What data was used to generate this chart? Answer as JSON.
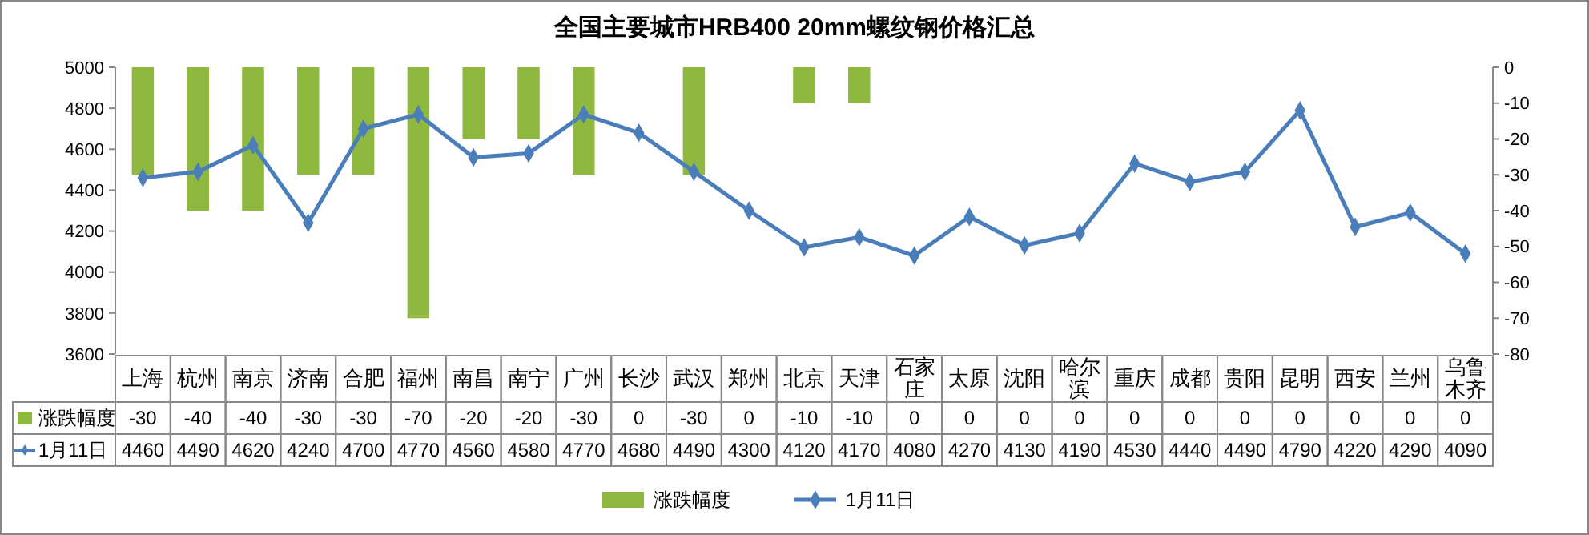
{
  "chart_data": {
    "type": "bar",
    "title": "全国主要城市HRB400 20mm螺纹钢价格汇总",
    "categories": [
      "上海",
      "杭州",
      "南京",
      "济南",
      "合肥",
      "福州",
      "南昌",
      "南宁",
      "广州",
      "长沙",
      "武汉",
      "郑州",
      "北京",
      "天津",
      "石家庄",
      "太原",
      "沈阳",
      "哈尔滨",
      "重庆",
      "成都",
      "贵阳",
      "昆明",
      "西安",
      "兰州",
      "乌鲁木齐"
    ],
    "series": [
      {
        "name": "涨跌幅度",
        "axis": "y2",
        "color": "#8fb83f",
        "values": [
          -30,
          -40,
          -40,
          -30,
          -30,
          -70,
          -20,
          -20,
          -30,
          0,
          -30,
          0,
          -10,
          -10,
          0,
          0,
          0,
          0,
          0,
          0,
          0,
          0,
          0,
          0,
          0
        ]
      },
      {
        "name": "1月11日",
        "type": "line",
        "color": "#4a7ebb",
        "marker": "diamond",
        "values": [
          4460,
          4490,
          4620,
          4240,
          4700,
          4770,
          4560,
          4580,
          4770,
          4680,
          4490,
          4300,
          4120,
          4170,
          4080,
          4270,
          4130,
          4190,
          4530,
          4440,
          4490,
          4790,
          4220,
          4290,
          4090
        ]
      }
    ],
    "ylim": [
      3600,
      5000
    ],
    "yticks": [
      3600,
      3800,
      4000,
      4200,
      4400,
      4600,
      4800,
      5000
    ],
    "y2lim": [
      -80,
      0
    ],
    "y2ticks": [
      -80,
      -70,
      -60,
      -50,
      -40,
      -30,
      -20,
      -10,
      0
    ],
    "data_labels": true,
    "legend": "bottom",
    "grid": false
  }
}
